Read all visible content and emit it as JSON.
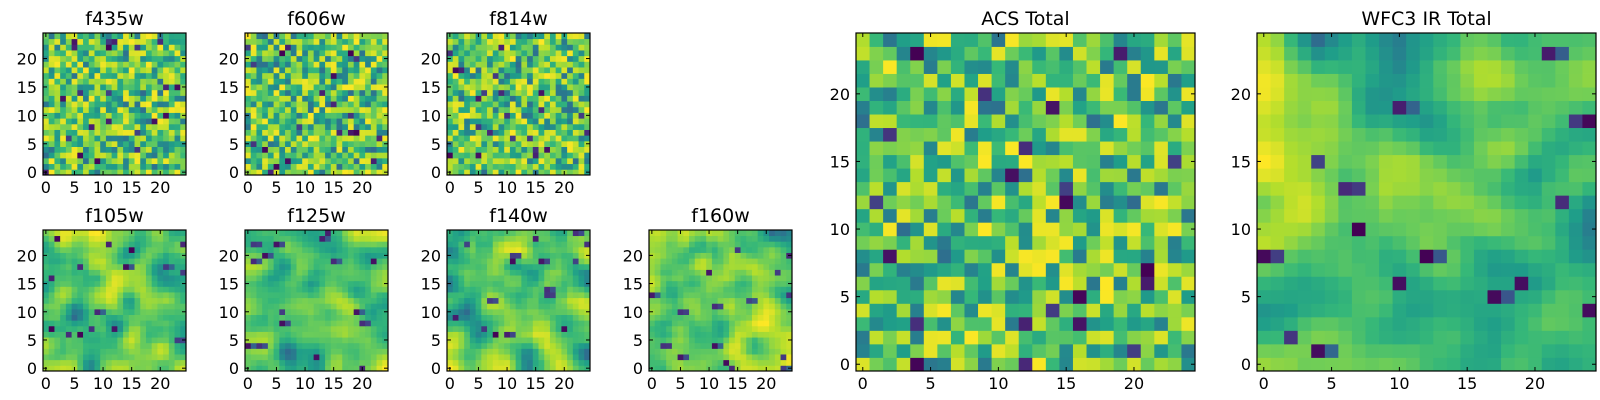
{
  "chart_data": [
    {
      "type": "heatmap",
      "title": "f435w",
      "size": 25,
      "xlim": [
        -0.5,
        24.5
      ],
      "ylim": [
        -0.5,
        24.5
      ],
      "xticks": [
        0,
        5,
        10,
        15,
        20
      ],
      "yticks": [
        0,
        5,
        10,
        15,
        20
      ],
      "colormap": "viridis",
      "texture": "pixel noise",
      "origin": "lower"
    },
    {
      "type": "heatmap",
      "title": "f606w",
      "size": 25,
      "xlim": [
        -0.5,
        24.5
      ],
      "ylim": [
        -0.5,
        24.5
      ],
      "xticks": [
        0,
        5,
        10,
        15,
        20
      ],
      "yticks": [
        0,
        5,
        10,
        15,
        20
      ],
      "colormap": "viridis",
      "texture": "pixel noise",
      "origin": "lower"
    },
    {
      "type": "heatmap",
      "title": "f814w",
      "size": 25,
      "xlim": [
        -0.5,
        24.5
      ],
      "ylim": [
        -0.5,
        24.5
      ],
      "xticks": [
        0,
        5,
        10,
        15,
        20
      ],
      "yticks": [
        0,
        5,
        10,
        15,
        20
      ],
      "colormap": "viridis",
      "texture": "pixel noise",
      "origin": "lower"
    },
    {
      "type": "heatmap",
      "title": "f105w",
      "size": 25,
      "xlim": [
        -0.5,
        24.5
      ],
      "ylim": [
        -0.5,
        24.5
      ],
      "xticks": [
        0,
        5,
        10,
        15,
        20
      ],
      "yticks": [
        0,
        5,
        10,
        15,
        20
      ],
      "colormap": "viridis",
      "texture": "smooth noise",
      "origin": "lower"
    },
    {
      "type": "heatmap",
      "title": "f125w",
      "size": 25,
      "xlim": [
        -0.5,
        24.5
      ],
      "ylim": [
        -0.5,
        24.5
      ],
      "xticks": [
        0,
        5,
        10,
        15,
        20
      ],
      "yticks": [
        0,
        5,
        10,
        15,
        20
      ],
      "colormap": "viridis",
      "texture": "smooth noise",
      "origin": "lower"
    },
    {
      "type": "heatmap",
      "title": "f140w",
      "size": 25,
      "xlim": [
        -0.5,
        24.5
      ],
      "ylim": [
        -0.5,
        24.5
      ],
      "xticks": [
        0,
        5,
        10,
        15,
        20
      ],
      "yticks": [
        0,
        5,
        10,
        15,
        20
      ],
      "colormap": "viridis",
      "texture": "smooth noise",
      "origin": "lower"
    },
    {
      "type": "heatmap",
      "title": "f160w",
      "size": 25,
      "xlim": [
        -0.5,
        24.5
      ],
      "ylim": [
        -0.5,
        24.5
      ],
      "xticks": [
        0,
        5,
        10,
        15,
        20
      ],
      "yticks": [
        0,
        5,
        10,
        15,
        20
      ],
      "colormap": "viridis",
      "texture": "smooth noise",
      "origin": "lower"
    },
    {
      "type": "heatmap",
      "title": "ACS Total",
      "size": 25,
      "xlim": [
        -0.5,
        24.5
      ],
      "ylim": [
        -0.5,
        24.5
      ],
      "xticks": [
        0,
        5,
        10,
        15,
        20
      ],
      "yticks": [
        0,
        5,
        10,
        15,
        20
      ],
      "colormap": "viridis",
      "texture": "pixel noise",
      "origin": "lower"
    },
    {
      "type": "heatmap",
      "title": "WFC3 IR Total",
      "size": 25,
      "xlim": [
        -0.5,
        24.5
      ],
      "ylim": [
        -0.5,
        24.5
      ],
      "xticks": [
        0,
        5,
        10,
        15,
        20
      ],
      "yticks": [
        0,
        5,
        10,
        15,
        20
      ],
      "colormap": "viridis",
      "texture": "smooth noise with bright left patch",
      "origin": "lower"
    }
  ]
}
